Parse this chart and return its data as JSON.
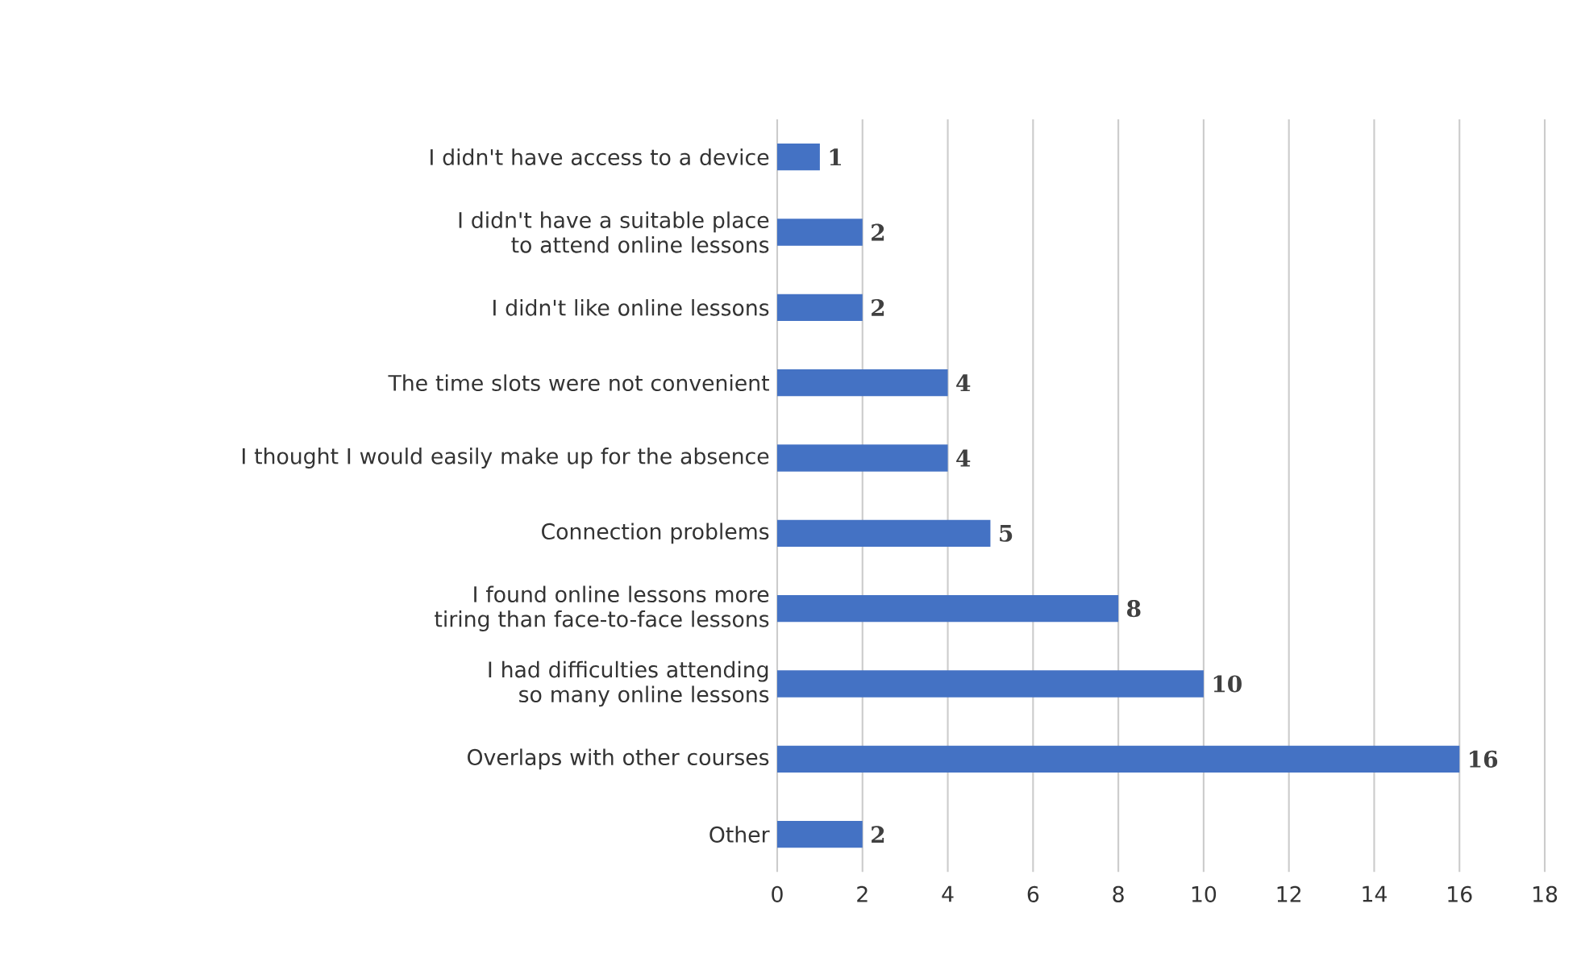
{
  "chart_data": {
    "type": "bar",
    "orientation": "horizontal",
    "categories": [
      "I didn't have access to a device",
      "I didn't have a suitable place to attend online lessons",
      "I didn't like online lessons",
      "The time slots were not convenient",
      "I thought I would easily make up for the absence",
      "Connection problems",
      "I found online lessons more tiring than face-to-face lessons",
      "I had difficulties attending so many online lessons",
      "Overlaps with other courses",
      "Other"
    ],
    "values": [
      1,
      2,
      2,
      4,
      4,
      5,
      8,
      10,
      16,
      2
    ],
    "color": "#4472c4",
    "xlim": [
      0,
      18
    ],
    "xticks": [
      0,
      2,
      4,
      6,
      8,
      10,
      12,
      14,
      16,
      18
    ],
    "grid": "x",
    "data_labels": true
  }
}
